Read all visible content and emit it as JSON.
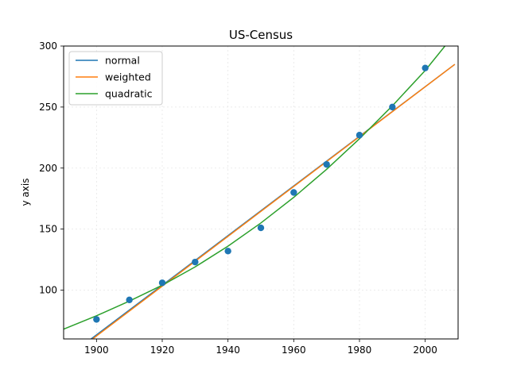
{
  "chart_data": {
    "type": "line",
    "title": "US-Census",
    "xlabel": "",
    "ylabel": "y axis",
    "xlim": [
      1890,
      2010
    ],
    "ylim": [
      60,
      300
    ],
    "xticks": [
      1900,
      1920,
      1940,
      1960,
      1980,
      2000
    ],
    "yticks": [
      100,
      150,
      200,
      250,
      300
    ],
    "grid": true,
    "legend_position": "upper-left",
    "points": {
      "x": [
        1900,
        1910,
        1920,
        1930,
        1940,
        1950,
        1960,
        1970,
        1980,
        1990,
        2000
      ],
      "y": [
        76,
        92,
        106,
        123,
        132,
        151,
        180,
        203,
        227,
        250,
        282
      ],
      "color": "#1f77b4"
    },
    "series": [
      {
        "name": "normal",
        "color": "#1f77b4",
        "x": [
          1890,
          2009
        ],
        "y": [
          43,
          285
        ]
      },
      {
        "name": "weighted",
        "color": "#ff7f0e",
        "x": [
          1890,
          2009
        ],
        "y": [
          42,
          285
        ]
      },
      {
        "name": "quadratic",
        "color": "#2ca02c",
        "x": [
          1890,
          1900,
          1910,
          1920,
          1930,
          1940,
          1950,
          1960,
          1970,
          1980,
          1990,
          2000,
          2006
        ],
        "y": [
          68,
          79,
          91,
          104,
          119,
          136,
          155,
          176,
          199,
          224,
          251,
          280,
          300
        ]
      }
    ]
  }
}
